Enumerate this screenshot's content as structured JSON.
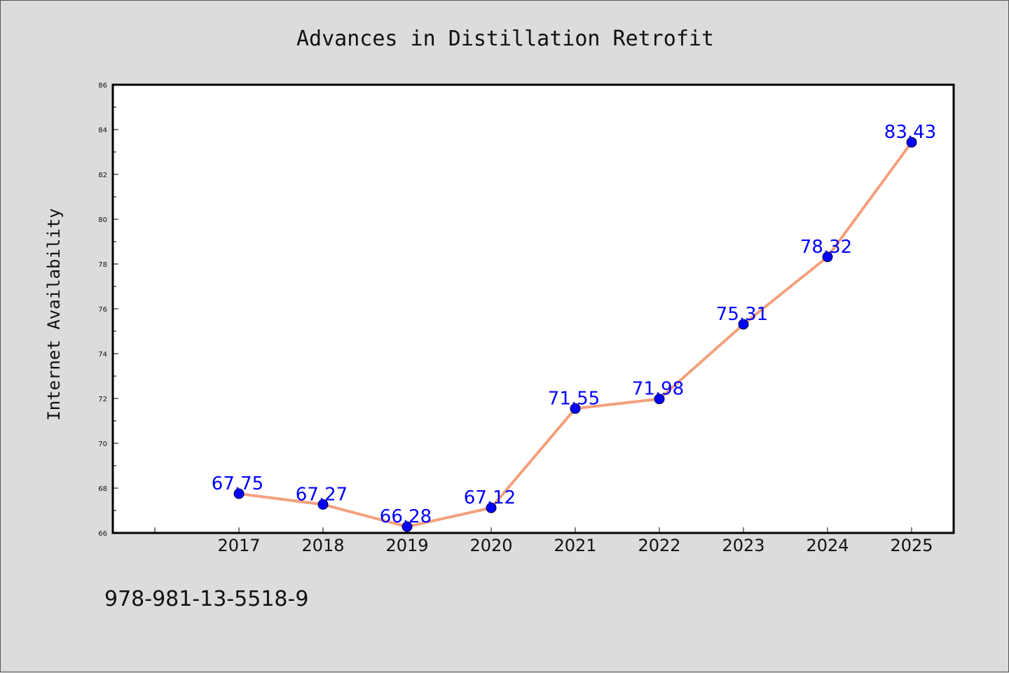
{
  "chart_data": {
    "type": "line",
    "title": "Advances in Distillation Retrofit",
    "xlabel": "",
    "ylabel": "Internet Availability",
    "categories": [
      "2017",
      "2018",
      "2019",
      "2020",
      "2021",
      "2022",
      "2023",
      "2024",
      "2025"
    ],
    "series": [
      {
        "values": [
          67.75,
          67.27,
          66.28,
          67.12,
          71.55,
          71.98,
          75.31,
          78.32,
          83.43
        ],
        "labels": [
          "67.75",
          "67.27",
          "66.28",
          "67.12",
          "71.55",
          "71.98",
          "75.31",
          "78.32",
          "83.43"
        ],
        "line_color": "#f4a07c",
        "marker_color": "#0000ff"
      }
    ],
    "ylim": [
      66,
      86
    ],
    "yticks": [
      "66",
      "68",
      "70",
      "72",
      "74",
      "76",
      "78",
      "80",
      "82",
      "84",
      "86"
    ],
    "grid": false,
    "legend": "none"
  },
  "footer": {
    "text": "978-981-13-5518-9"
  },
  "colors": {
    "background": "#dcdcdc",
    "plot_background": "#ffffff",
    "axis": "#000000"
  }
}
